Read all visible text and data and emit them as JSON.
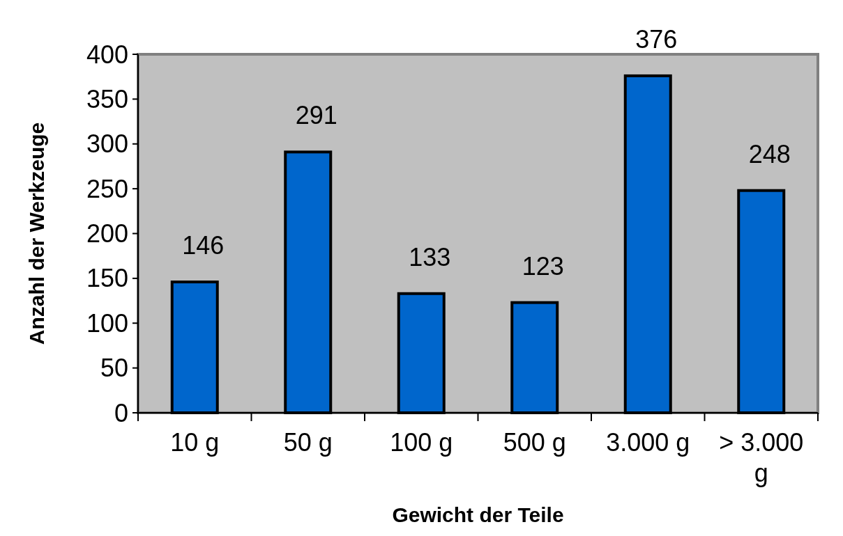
{
  "chart_data": {
    "type": "bar",
    "xlabel": "Gewicht der Teile",
    "ylabel": "Anzahl der Werkzeuge",
    "categories": [
      "10 g",
      "50 g",
      "100 g",
      "500 g",
      "3.000 g",
      "> 3.000 g"
    ],
    "values": [
      146,
      291,
      133,
      123,
      376,
      248
    ],
    "color": "#0066cc",
    "ylim": [
      0,
      400
    ],
    "yticks": [
      0,
      50,
      100,
      150,
      200,
      250,
      300,
      350,
      400
    ],
    "grid": false,
    "data_labels": true
  }
}
